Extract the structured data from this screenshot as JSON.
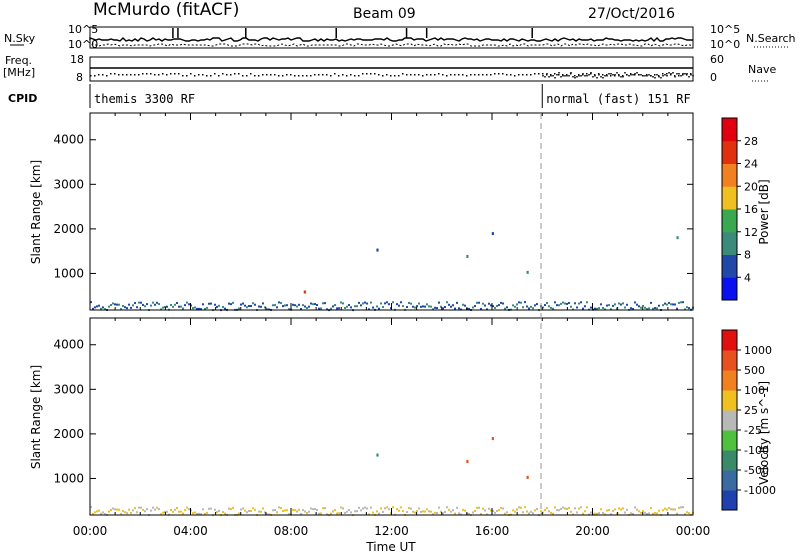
{
  "header": {
    "station": "McMurdo (fitACF)",
    "beam": "Beam 09",
    "date": "27/Oct/2016"
  },
  "left_labels": {
    "nsky": "N.Sky",
    "freq": "Freq.",
    "mhz": "[MHz]",
    "cpid": "CPID",
    "nsky_top": "10^5",
    "nsky_bottom": "10^0",
    "freq_top": "18",
    "freq_bottom": "8"
  },
  "right_labels": {
    "nsearch": "N.Search",
    "nave": "Nave",
    "nsearch_top": "10^5",
    "nsearch_bottom": "10^0",
    "nave_top": "60",
    "nave_bottom": "0"
  },
  "cpid_segments": [
    {
      "label": "themis 3300 RF",
      "start": 0.0
    },
    {
      "label": "normal (fast) 151 RF",
      "start": 18.0
    }
  ],
  "chart_data": [
    {
      "type": "heatmap",
      "panel": "power",
      "ylabel": "Slant Range [km]",
      "ylim": [
        180,
        4600
      ],
      "yticks": [
        1000,
        2000,
        3000,
        4000
      ],
      "xlim": [
        0,
        24
      ],
      "colorbar": {
        "label": "Power [dB]",
        "ticks": [
          "4",
          "8",
          "12",
          "16",
          "20",
          "24",
          "28"
        ],
        "colors": [
          "#0a10ee",
          "#2048a8",
          "#3c8a7a",
          "#3aa850",
          "#f0c020",
          "#f08020",
          "#e03010",
          "#e00010"
        ]
      }
    },
    {
      "type": "heatmap",
      "panel": "velocity",
      "ylabel": "Slant Range [km]",
      "ylim": [
        180,
        4600
      ],
      "yticks": [
        1000,
        2000,
        3000,
        4000
      ],
      "xlim": [
        0,
        24
      ],
      "xlabel": "Time UT",
      "xticks": [
        "00:00",
        "04:00",
        "08:00",
        "12:00",
        "16:00",
        "20:00",
        "00:00"
      ],
      "colorbar": {
        "label": "Velocity [m s^-1]",
        "ticks": [
          "1000",
          "500",
          "100",
          "25",
          "-25",
          "-100",
          "-500",
          "-1000"
        ],
        "colors": [
          "#2040b0",
          "#3a6aa0",
          "#3a8a6a",
          "#50c040",
          "#b8b8b8",
          "#f0c020",
          "#f08020",
          "#e85020",
          "#e01010"
        ]
      }
    }
  ]
}
